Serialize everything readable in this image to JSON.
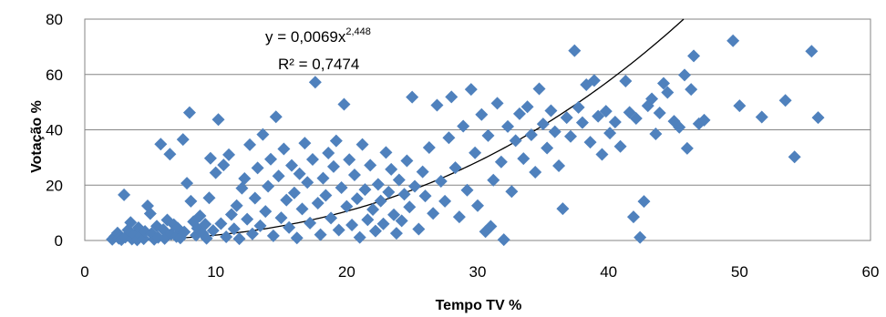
{
  "chart_data": {
    "type": "scatter",
    "xlabel": "Tempo TV %",
    "ylabel": "Votação %",
    "xlim": [
      0,
      60
    ],
    "ylim": [
      0,
      80
    ],
    "x_ticks": [
      "0",
      "10",
      "20",
      "30",
      "40",
      "50",
      "60"
    ],
    "y_ticks": [
      "0",
      "20",
      "40",
      "60",
      "80"
    ],
    "grid": "horizontal",
    "marker_color": "#4F81BD",
    "trendline_color": "#000000",
    "trendline": {
      "type": "power",
      "a": 0.0069,
      "b": 2.448,
      "equation_base": "y = 0,0069x",
      "equation_exponent": "2,448",
      "r_squared": "R² = 0,7474"
    },
    "series": [
      {
        "points": [
          [
            2.1,
            0.4
          ],
          [
            2.3,
            1.5
          ],
          [
            2.5,
            2.7
          ],
          [
            2.6,
            0.8
          ],
          [
            2.8,
            0.3
          ],
          [
            3.0,
            16.5
          ],
          [
            3.1,
            1.2
          ],
          [
            3.3,
            3.8
          ],
          [
            3.5,
            6.5
          ],
          [
            3.6,
            0.5
          ],
          [
            3.8,
            2.1
          ],
          [
            4.0,
            0.2
          ],
          [
            4.1,
            4.6
          ],
          [
            4.3,
            1.8
          ],
          [
            4.5,
            0.6
          ],
          [
            4.6,
            3.3
          ],
          [
            4.8,
            12.5
          ],
          [
            5.0,
            9.7
          ],
          [
            5.1,
            2.5
          ],
          [
            5.3,
            0.4
          ],
          [
            5.5,
            5.2
          ],
          [
            5.6,
            1.1
          ],
          [
            5.8,
            34.8
          ],
          [
            6.0,
            3.9
          ],
          [
            6.1,
            0.7
          ],
          [
            6.3,
            7.4
          ],
          [
            6.5,
            31.2
          ],
          [
            6.6,
            2.3
          ],
          [
            6.8,
            5.7
          ],
          [
            7.0,
            1.4
          ],
          [
            7.1,
            4.5
          ],
          [
            7.3,
            0.9
          ],
          [
            7.5,
            36.5
          ],
          [
            7.6,
            3.1
          ],
          [
            7.8,
            20.7
          ],
          [
            8.0,
            46.2
          ],
          [
            8.1,
            14.2
          ],
          [
            8.3,
            6.8
          ],
          [
            8.5,
            1.9
          ],
          [
            8.6,
            4.4
          ],
          [
            8.8,
            8.9
          ],
          [
            9.0,
            2.6
          ],
          [
            9.2,
            5.9
          ],
          [
            9.3,
            0.8
          ],
          [
            9.5,
            15.4
          ],
          [
            9.6,
            29.7
          ],
          [
            9.8,
            3.6
          ],
          [
            10.0,
            24.5
          ],
          [
            10.2,
            43.7
          ],
          [
            10.4,
            6.1
          ],
          [
            10.6,
            27.3
          ],
          [
            10.8,
            1.3
          ],
          [
            11.0,
            31.0
          ],
          [
            11.2,
            9.4
          ],
          [
            11.4,
            4.2
          ],
          [
            11.6,
            12.6
          ],
          [
            11.8,
            0.6
          ],
          [
            12.0,
            18.9
          ],
          [
            12.2,
            22.4
          ],
          [
            12.4,
            7.7
          ],
          [
            12.6,
            34.6
          ],
          [
            12.8,
            2.4
          ],
          [
            13.0,
            15.3
          ],
          [
            13.2,
            26.2
          ],
          [
            13.4,
            5.3
          ],
          [
            13.6,
            38.3
          ],
          [
            13.8,
            10.5
          ],
          [
            14.0,
            19.6
          ],
          [
            14.2,
            29.4
          ],
          [
            14.4,
            1.7
          ],
          [
            14.6,
            44.7
          ],
          [
            14.8,
            23.3
          ],
          [
            15.0,
            8.2
          ],
          [
            15.2,
            33.1
          ],
          [
            15.4,
            14.6
          ],
          [
            15.6,
            4.7
          ],
          [
            15.8,
            27.1
          ],
          [
            16.0,
            17.2
          ],
          [
            16.2,
            0.9
          ],
          [
            16.4,
            24.1
          ],
          [
            16.6,
            11.4
          ],
          [
            16.8,
            35.2
          ],
          [
            17.0,
            21.0
          ],
          [
            17.2,
            6.3
          ],
          [
            17.4,
            29.3
          ],
          [
            17.6,
            57.2
          ],
          [
            17.8,
            13.5
          ],
          [
            18.0,
            2.1
          ],
          [
            18.2,
            22.5
          ],
          [
            18.4,
            16.3
          ],
          [
            18.6,
            31.6
          ],
          [
            18.8,
            8.1
          ],
          [
            19.0,
            26.7
          ],
          [
            19.2,
            36.0
          ],
          [
            19.4,
            3.8
          ],
          [
            19.6,
            19.1
          ],
          [
            19.8,
            49.2
          ],
          [
            20.0,
            12.3
          ],
          [
            20.2,
            29.2
          ],
          [
            20.4,
            5.6
          ],
          [
            20.6,
            23.7
          ],
          [
            20.8,
            15.1
          ],
          [
            21.0,
            1.1
          ],
          [
            21.2,
            34.7
          ],
          [
            21.4,
            18.4
          ],
          [
            21.6,
            7.5
          ],
          [
            21.8,
            27.2
          ],
          [
            22.0,
            11.2
          ],
          [
            22.2,
            3.4
          ],
          [
            22.4,
            20.3
          ],
          [
            22.6,
            14.3
          ],
          [
            22.8,
            6.0
          ],
          [
            23.0,
            31.8
          ],
          [
            23.2,
            17.5
          ],
          [
            23.4,
            25.7
          ],
          [
            23.6,
            9.3
          ],
          [
            23.8,
            2.6
          ],
          [
            24.0,
            21.9
          ],
          [
            24.2,
            7.1
          ],
          [
            24.4,
            16.7
          ],
          [
            24.6,
            28.8
          ],
          [
            24.8,
            12.1
          ],
          [
            25.0,
            51.8
          ],
          [
            25.2,
            19.6
          ],
          [
            25.5,
            4.1
          ],
          [
            25.8,
            24.8
          ],
          [
            26.0,
            16.1
          ],
          [
            26.3,
            33.6
          ],
          [
            26.6,
            9.8
          ],
          [
            26.9,
            48.9
          ],
          [
            27.2,
            21.4
          ],
          [
            27.5,
            14.2
          ],
          [
            27.8,
            37.1
          ],
          [
            28.0,
            51.9
          ],
          [
            28.3,
            26.3
          ],
          [
            28.6,
            8.5
          ],
          [
            28.9,
            41.3
          ],
          [
            29.2,
            18.2
          ],
          [
            29.5,
            54.6
          ],
          [
            29.8,
            31.7
          ],
          [
            30.0,
            12.6
          ],
          [
            30.3,
            45.5
          ],
          [
            30.6,
            3.2
          ],
          [
            30.8,
            37.9
          ],
          [
            31.0,
            5.1
          ],
          [
            31.2,
            21.8
          ],
          [
            31.5,
            49.6
          ],
          [
            31.8,
            28.4
          ],
          [
            32.0,
            0.3
          ],
          [
            32.3,
            41.2
          ],
          [
            32.6,
            17.7
          ],
          [
            32.9,
            36.1
          ],
          [
            33.2,
            45.8
          ],
          [
            33.5,
            29.6
          ],
          [
            33.8,
            48.3
          ],
          [
            34.1,
            38.2
          ],
          [
            34.4,
            24.7
          ],
          [
            34.7,
            54.8
          ],
          [
            35.0,
            42.1
          ],
          [
            35.3,
            33.4
          ],
          [
            35.6,
            46.9
          ],
          [
            35.9,
            39.3
          ],
          [
            36.2,
            27.0
          ],
          [
            36.5,
            11.5
          ],
          [
            36.8,
            44.4
          ],
          [
            37.1,
            37.6
          ],
          [
            37.4,
            68.6
          ],
          [
            37.7,
            48.1
          ],
          [
            38.0,
            42.6
          ],
          [
            38.3,
            56.3
          ],
          [
            38.6,
            35.5
          ],
          [
            38.9,
            57.8
          ],
          [
            39.2,
            44.9
          ],
          [
            39.5,
            31.1
          ],
          [
            39.8,
            46.7
          ],
          [
            40.1,
            38.8
          ],
          [
            40.5,
            42.8
          ],
          [
            40.9,
            34.0
          ],
          [
            41.3,
            57.6
          ],
          [
            41.6,
            46.3
          ],
          [
            41.9,
            8.5
          ],
          [
            42.1,
            44.1
          ],
          [
            42.4,
            1.1
          ],
          [
            42.7,
            14.1
          ],
          [
            43.0,
            48.7
          ],
          [
            43.3,
            51.2
          ],
          [
            43.6,
            38.5
          ],
          [
            43.9,
            46.1
          ],
          [
            44.2,
            56.8
          ],
          [
            44.5,
            53.5
          ],
          [
            45.0,
            43.1
          ],
          [
            45.4,
            40.9
          ],
          [
            45.8,
            59.8
          ],
          [
            46.0,
            33.3
          ],
          [
            46.3,
            54.6
          ],
          [
            46.5,
            66.7
          ],
          [
            46.9,
            42.2
          ],
          [
            47.3,
            43.5
          ],
          [
            49.5,
            72.2
          ],
          [
            50.0,
            48.7
          ],
          [
            51.7,
            44.6
          ],
          [
            53.5,
            50.6
          ],
          [
            54.2,
            30.2
          ],
          [
            55.5,
            68.4
          ],
          [
            56.0,
            44.4
          ]
        ]
      }
    ]
  }
}
